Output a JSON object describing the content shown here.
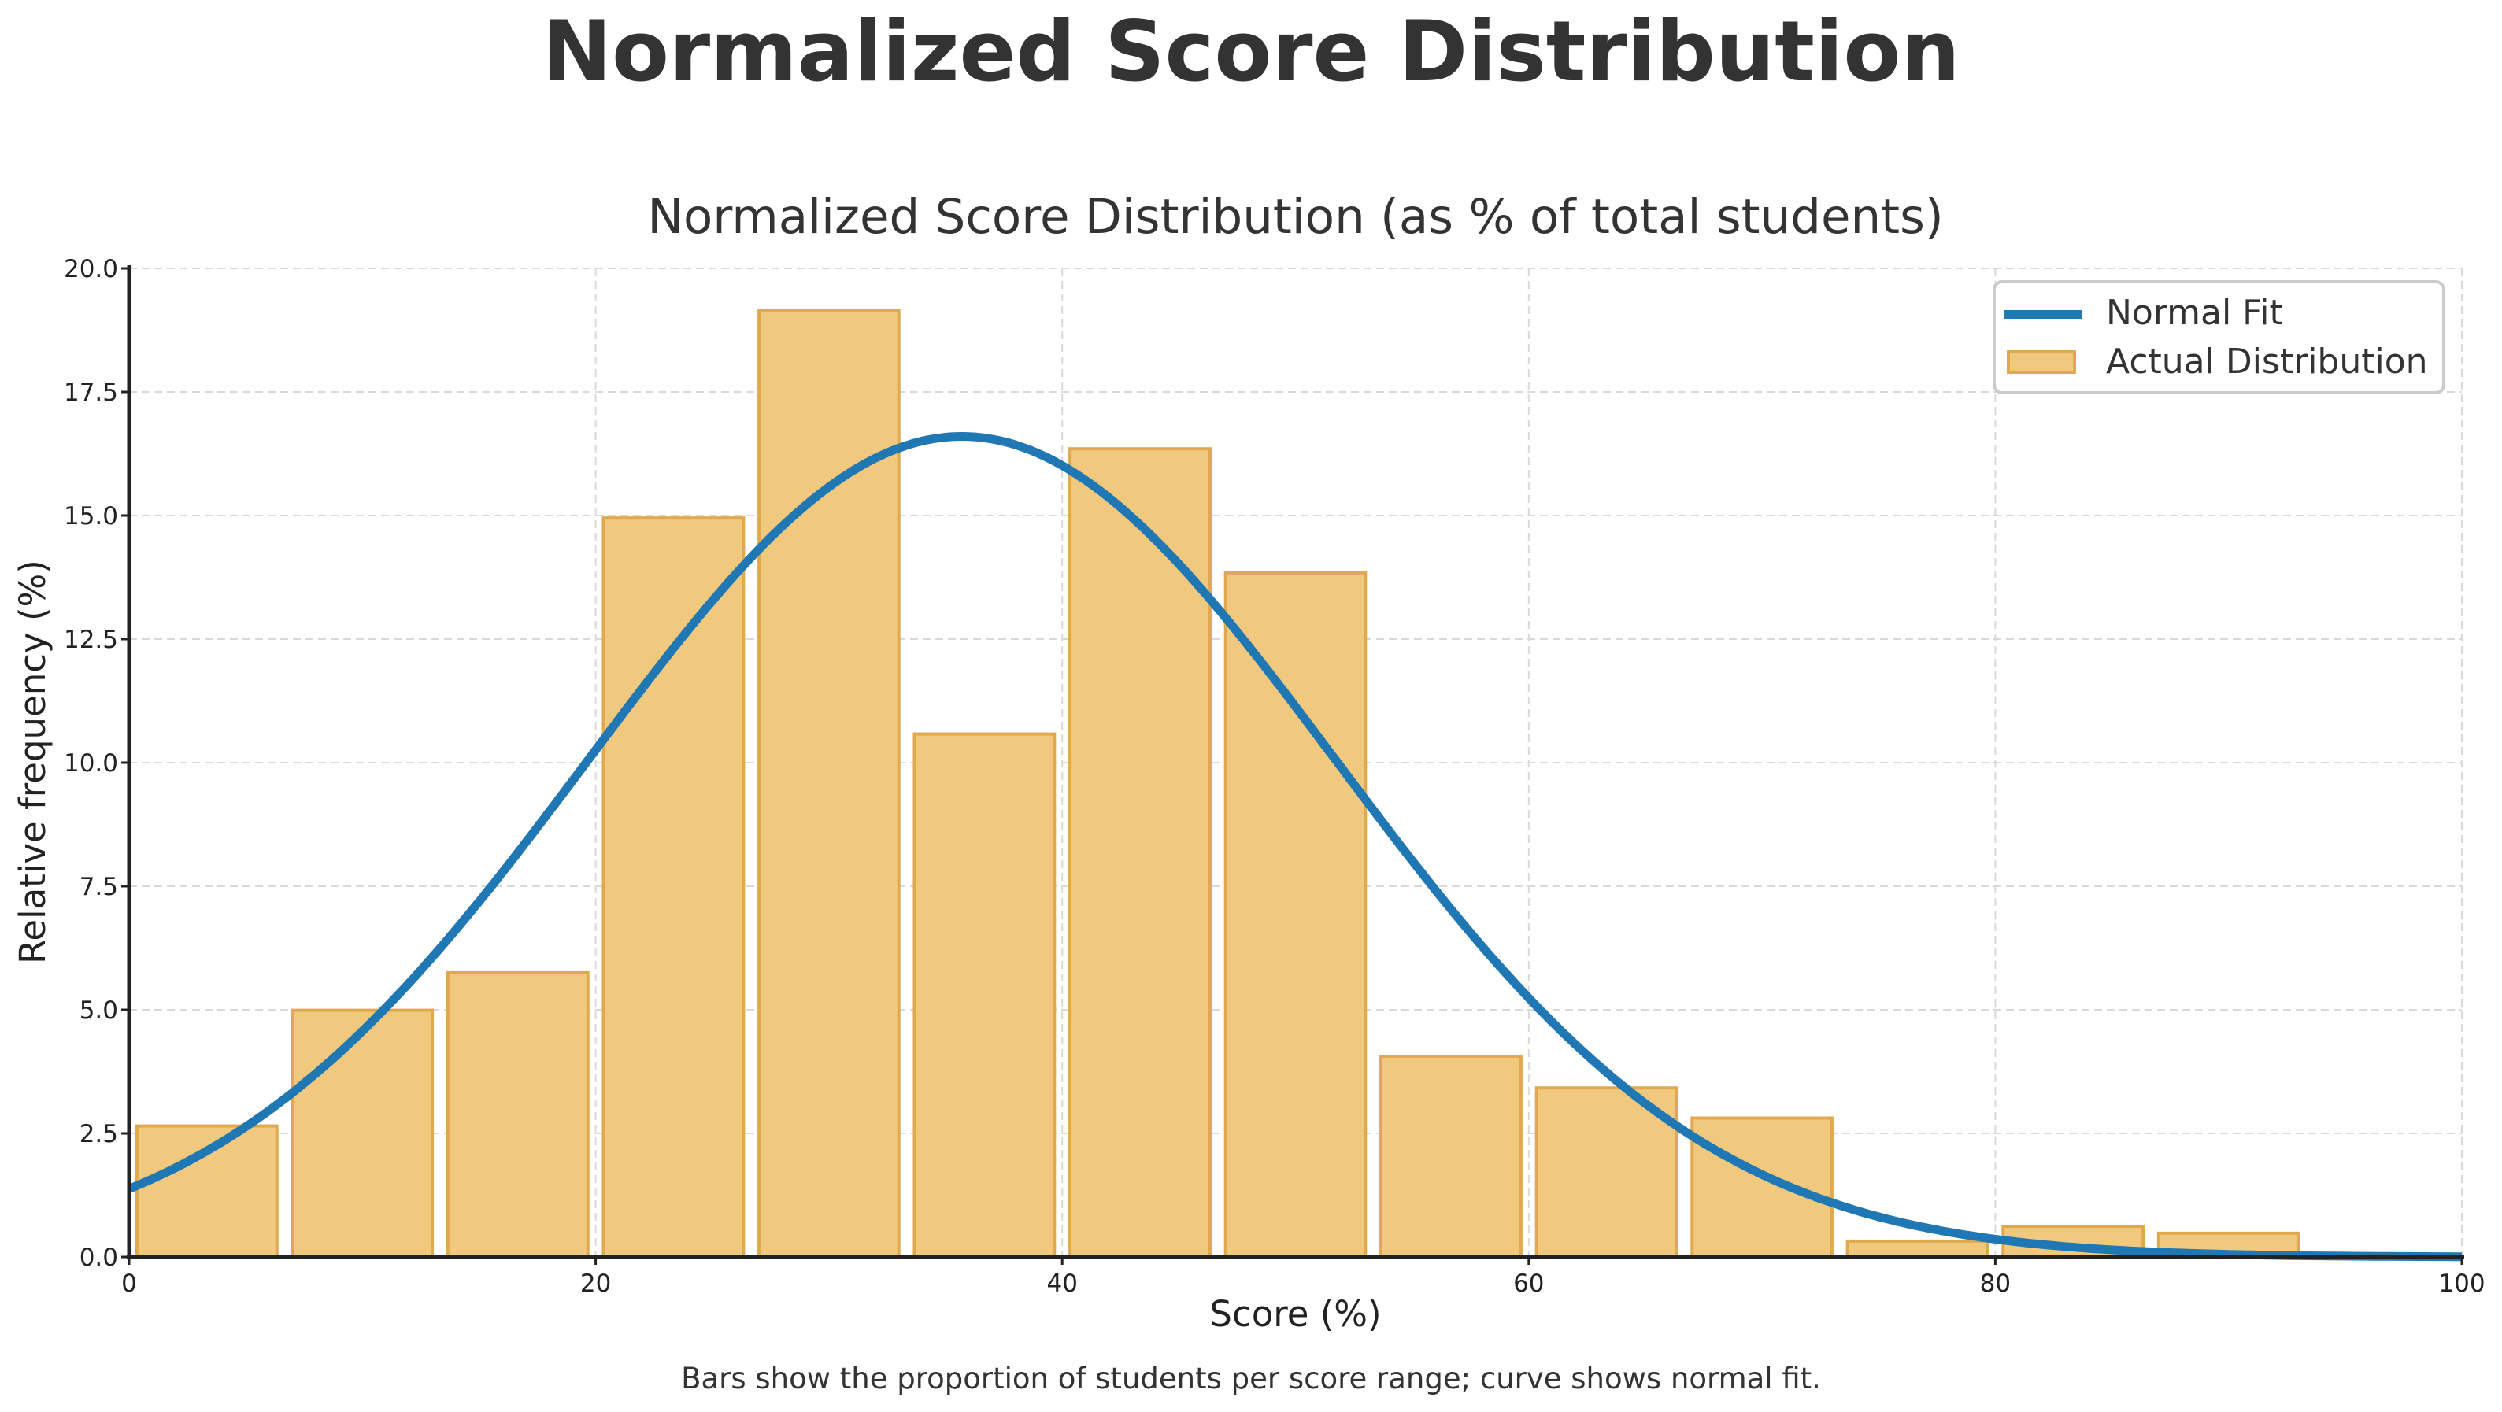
{
  "figure": {
    "suptitle": "Normalized Score Distribution",
    "footnote": "Bars show the proportion of students per score range; curve shows normal fit."
  },
  "colors": {
    "bar_fill": "#f0c97f",
    "bar_edge": "#e0a94e",
    "curve": "#1f77b4",
    "grid": "#d9d9d9",
    "axis": "#222222",
    "text": "#333333"
  },
  "chart_data": {
    "type": "bar",
    "title": "Normalized Score Distribution (as % of total students)",
    "xlabel": "Score (%)",
    "ylabel": "Relative frequency (%)",
    "xlim": [
      0,
      100
    ],
    "ylim": [
      0,
      20
    ],
    "xticks": [
      0,
      20,
      40,
      60,
      80,
      100
    ],
    "xtick_labels": [
      "0",
      "20",
      "40",
      "60",
      "80",
      "100"
    ],
    "yticks": [
      0,
      2.5,
      5,
      7.5,
      10,
      12.5,
      15,
      17.5,
      20
    ],
    "ytick_labels": [
      "0.0",
      "2.5",
      "5.0",
      "7.5",
      "10.0",
      "12.5",
      "15.0",
      "17.5",
      "20.0"
    ],
    "grid": true,
    "legend_position": "upper right",
    "bin_edges": [
      0,
      6.67,
      13.33,
      20,
      26.67,
      33.33,
      40,
      46.67,
      53.33,
      60,
      66.67,
      73.33,
      80,
      86.67,
      93.33,
      100
    ],
    "categories": [
      "0-6.7",
      "6.7-13.3",
      "13.3-20",
      "20-26.7",
      "26.7-33.3",
      "33.3-40",
      "40-46.7",
      "46.7-53.3",
      "53.3-60",
      "60-66.7",
      "66.7-73.3",
      "73.3-80",
      "80-86.7",
      "86.7-93.3",
      "93.3-100"
    ],
    "bar_rwidth": 0.9,
    "series": [
      {
        "name": "Actual Distribution",
        "type": "bar",
        "values": [
          2.65,
          4.99,
          5.75,
          14.95,
          19.15,
          10.58,
          16.35,
          13.84,
          4.06,
          3.42,
          2.81,
          0.32,
          0.62,
          0.48,
          0.0
        ]
      },
      {
        "name": "Normal Fit",
        "type": "line",
        "mu": 35.7,
        "sigma": 16.0,
        "peak": 16.6,
        "x": [
          0,
          10,
          20,
          30,
          35.7,
          40,
          50,
          60,
          70,
          80,
          90,
          100
        ],
        "values": [
          1.4,
          4.4,
          10.1,
          15.6,
          16.6,
          16.0,
          11.3,
          5.3,
          1.7,
          0.36,
          0.05,
          0.0
        ]
      }
    ]
  },
  "legend": {
    "items": [
      {
        "label": "Normal Fit",
        "kind": "line"
      },
      {
        "label": "Actual Distribution",
        "kind": "patch"
      }
    ]
  }
}
